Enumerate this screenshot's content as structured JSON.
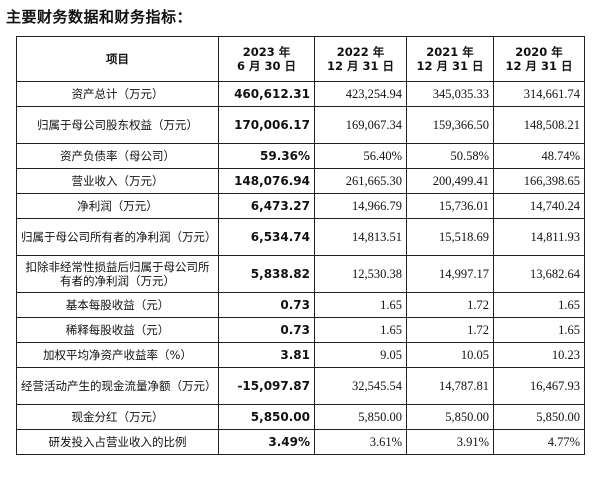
{
  "title": "主要财务数据和财务指标：",
  "columns": [
    {
      "line1": "项目",
      "line2": ""
    },
    {
      "line1": "2023 年",
      "line2": "6 月 30 日"
    },
    {
      "line1": "2022 年",
      "line2": "12 月 31 日"
    },
    {
      "line1": "2021 年",
      "line2": "12 月 31 日"
    },
    {
      "line1": "2020 年",
      "line2": "12 月 31 日"
    }
  ],
  "rows": [
    {
      "item": "资产总计（万元）",
      "v": [
        "460,612.31",
        "423,254.94",
        "345,035.33",
        "314,661.74"
      ]
    },
    {
      "item": "归属于母公司股东权益（万元）",
      "v": [
        "170,006.17",
        "169,067.34",
        "159,366.50",
        "148,508.21"
      ]
    },
    {
      "item": "资产负债率（母公司）",
      "v": [
        "59.36%",
        "56.40%",
        "50.58%",
        "48.74%"
      ]
    },
    {
      "item": "营业收入（万元）",
      "v": [
        "148,076.94",
        "261,665.30",
        "200,499.41",
        "166,398.65"
      ]
    },
    {
      "item": "净利润（万元）",
      "v": [
        "6,473.27",
        "14,966.79",
        "15,736.01",
        "14,740.24"
      ]
    },
    {
      "item": "归属于母公司所有者的净利润（万元）",
      "v": [
        "6,534.74",
        "14,813.51",
        "15,518.69",
        "14,811.93"
      ]
    },
    {
      "item": "扣除非经常性损益后归属于母公司所有者的净利润（万元）",
      "v": [
        "5,838.82",
        "12,530.38",
        "14,997.17",
        "13,682.64"
      ]
    },
    {
      "item": "基本每股收益（元）",
      "v": [
        "0.73",
        "1.65",
        "1.72",
        "1.65"
      ]
    },
    {
      "item": "稀释每股收益（元）",
      "v": [
        "0.73",
        "1.65",
        "1.72",
        "1.65"
      ]
    },
    {
      "item": "加权平均净资产收益率（%）",
      "v": [
        "3.81",
        "9.05",
        "10.05",
        "10.23"
      ]
    },
    {
      "item": "经营活动产生的现金流量净额（万元）",
      "v": [
        "-15,097.87",
        "32,545.54",
        "14,787.81",
        "16,467.93"
      ]
    },
    {
      "item": "现金分红（万元）",
      "v": [
        "5,850.00",
        "5,850.00",
        "5,850.00",
        "5,850.00"
      ]
    },
    {
      "item": "研发投入占营业收入的比例",
      "v": [
        "3.49%",
        "3.61%",
        "3.91%",
        "4.77%"
      ]
    }
  ]
}
